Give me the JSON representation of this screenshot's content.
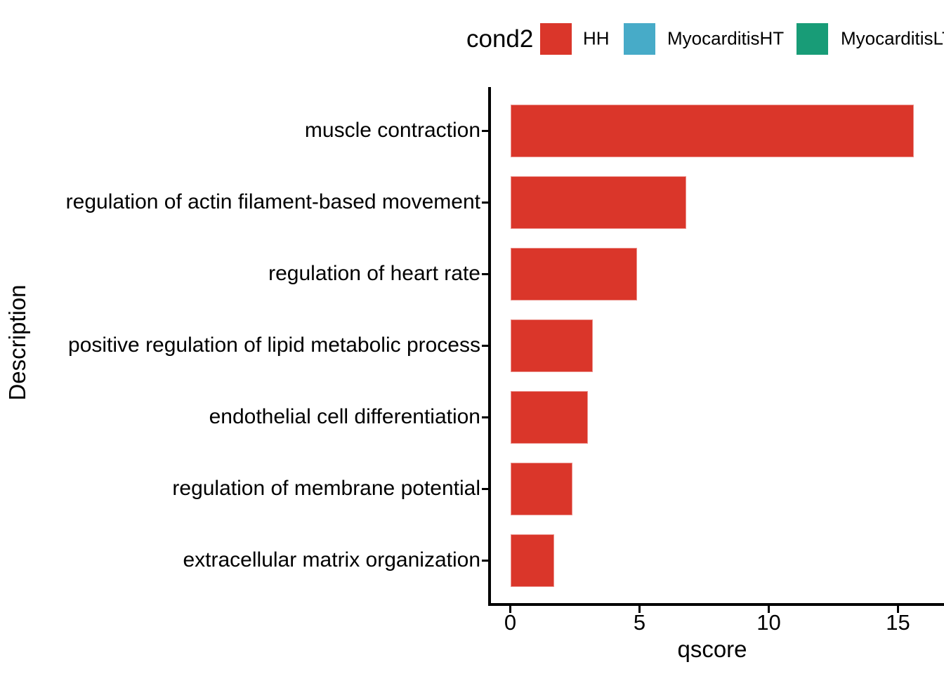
{
  "chart_data": {
    "type": "bar",
    "orientation": "horizontal",
    "title": "",
    "xlabel": "qscore",
    "ylabel": "Description",
    "categories": [
      "muscle contraction",
      "regulation of actin filament-based movement",
      "regulation of heart rate",
      "positive regulation of lipid metabolic process",
      "endothelial cell differentiation",
      "regulation of membrane potential",
      "extracellular matrix organization"
    ],
    "series": [
      {
        "name": "HH",
        "values": [
          15.6,
          6.8,
          4.9,
          3.2,
          3.0,
          2.4,
          1.7
        ]
      }
    ],
    "xlim": [
      0,
      16.8
    ],
    "xticks": [
      "0",
      "5",
      "10",
      "15"
    ],
    "xtick_values": [
      0,
      5,
      10,
      15
    ],
    "grid": false,
    "bar_color": "#da362a",
    "axis_color": "#000000",
    "legend": {
      "title": "cond2",
      "position": "top",
      "entries": [
        {
          "label": "HH",
          "color": "#da362a"
        },
        {
          "label": "MyocarditisHT",
          "color": "#47abc8"
        },
        {
          "label": "MyocarditisLT",
          "color": "#189c77"
        }
      ]
    }
  }
}
